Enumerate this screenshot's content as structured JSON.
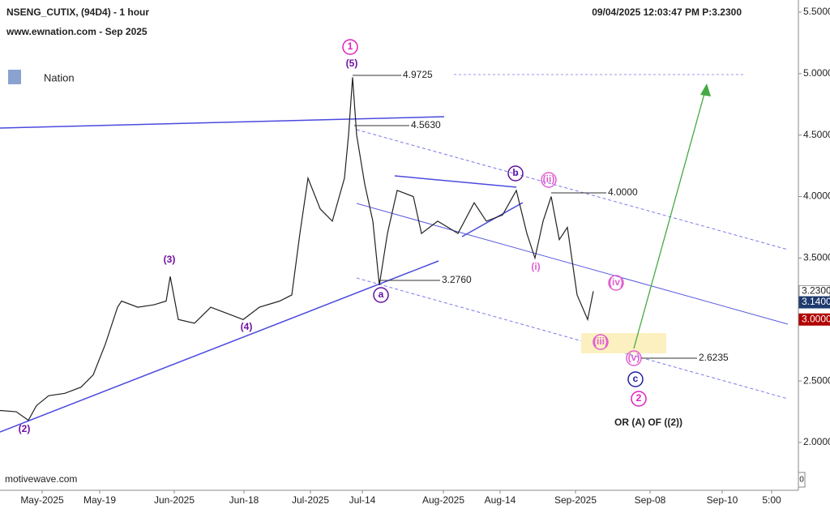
{
  "chart_data": {
    "type": "line",
    "title": "NSENG_CUTIX, (94D4) - 1 hour",
    "subtitle": "www.ewnation.com  - Sep 2025",
    "header_right": "09/04/2025 12:03:47 PM  P:3.2300",
    "logo": "Nation",
    "watermark": "motivewave.com",
    "note": "OR (A) OF ((2))",
    "corner": "0",
    "x": [
      0,
      20,
      35,
      45,
      60,
      80,
      100,
      115,
      130,
      145,
      150,
      170,
      190,
      205,
      210,
      220,
      240,
      260,
      280,
      300,
      320,
      345,
      360,
      370,
      380,
      395,
      410,
      425,
      430,
      435,
      440,
      450,
      460,
      468,
      478,
      490,
      510,
      520,
      540,
      565,
      585,
      600,
      620,
      637,
      650,
      660,
      670,
      680,
      690,
      700,
      712,
      725,
      732
    ],
    "series": [
      {
        "color": "#222222",
        "values": [
          2.26,
          2.25,
          2.18,
          2.3,
          2.38,
          2.4,
          2.45,
          2.55,
          2.8,
          3.1,
          3.15,
          3.1,
          3.12,
          3.15,
          3.35,
          3.0,
          2.97,
          3.1,
          3.05,
          3.0,
          3.1,
          3.15,
          3.2,
          3.7,
          4.15,
          3.9,
          3.8,
          4.15,
          4.5,
          4.97,
          4.5,
          4.1,
          3.8,
          3.28,
          3.7,
          4.05,
          4.0,
          3.7,
          3.8,
          3.7,
          3.95,
          3.8,
          3.85,
          4.05,
          3.7,
          3.5,
          3.8,
          4.0,
          3.65,
          3.75,
          3.2,
          3.0,
          3.23
        ]
      }
    ],
    "xlim": [
      0,
      985
    ],
    "xticks": [
      {
        "value": 52,
        "label": "May-2025"
      },
      {
        "value": 123,
        "label": "May-19"
      },
      {
        "value": 215,
        "label": "Jun-2025"
      },
      {
        "value": 301,
        "label": "Jun-18"
      },
      {
        "value": 383,
        "label": "Jul-2025"
      },
      {
        "value": 447,
        "label": "Jul-14"
      },
      {
        "value": 547,
        "label": "Aug-2025"
      },
      {
        "value": 617,
        "label": "Aug-14"
      },
      {
        "value": 710,
        "label": "Sep-2025"
      },
      {
        "value": 802,
        "label": "Sep-08"
      },
      {
        "value": 891,
        "label": "Sep-10"
      },
      {
        "value": 952,
        "label": "5:00"
      }
    ],
    "ylim": [
      1.6109,
      5.5
    ],
    "yticks": [
      {
        "value": 2,
        "label": "2.0000"
      },
      {
        "value": 2.5,
        "label": "2.5000"
      },
      {
        "value": 3,
        "label": "3.0000"
      },
      {
        "value": 3.5,
        "label": "3.5000"
      },
      {
        "value": 4,
        "label": "4.0000"
      },
      {
        "value": 4.5,
        "label": "4.5000"
      },
      {
        "value": 5,
        "label": "5.0000"
      },
      {
        "value": 5.5,
        "label": "5.5000"
      }
    ],
    "price_tags": [
      {
        "value": 3.23,
        "label": "3.2300",
        "color": "#ffffff"
      },
      {
        "value": 3.14,
        "label": "3.1400",
        "color": "#1f3a6e"
      },
      {
        "value": 3.0,
        "label": "3.0000",
        "color": "#b00000"
      }
    ],
    "levels": [
      "4.9725",
      "4.5630",
      "4.0000",
      "3.2760",
      "2.6235"
    ],
    "waves": [
      "1",
      "(5)",
      "(3)",
      "(4)",
      "(2)",
      "a",
      "b",
      "(ii)",
      "(i)",
      "(iv)",
      "(iii)",
      "(v)",
      "c",
      "2"
    ]
  }
}
